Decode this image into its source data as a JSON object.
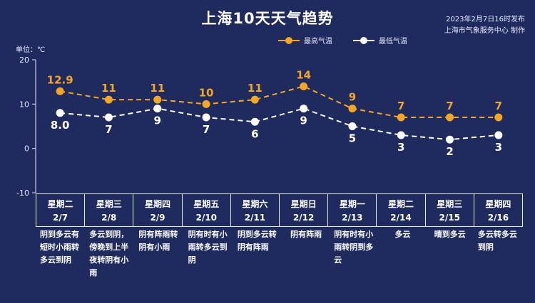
{
  "title": "上海10天天气趋势",
  "publish_time": "2023年2月7日16时发布",
  "publisher": "上海市气象服务中心 制作",
  "unit_label": "单位：℃",
  "colors": {
    "background": "#1f2a5e",
    "high": "#f5a623",
    "low": "#ffffff",
    "axis": "#e8ecff"
  },
  "chart_data": {
    "type": "line",
    "y_range": [
      -10,
      20
    ],
    "y_ticks": [
      "20",
      "10",
      "0",
      "-10"
    ],
    "legend_position": "top-center",
    "categories": [
      "2/7",
      "2/8",
      "2/9",
      "2/10",
      "2/11",
      "2/12",
      "2/13",
      "2/14",
      "2/15",
      "2/16"
    ],
    "series": [
      {
        "name": "最高气温",
        "values": [
          12.9,
          11,
          11,
          10,
          11,
          14,
          9,
          7,
          7,
          7
        ],
        "labels": [
          "12.9",
          "11",
          "11",
          "10",
          "11",
          "14",
          "9",
          "7",
          "7",
          "7"
        ]
      },
      {
        "name": "最低气温",
        "values": [
          8.0,
          7,
          9,
          7,
          6,
          9,
          5,
          3,
          2,
          3
        ],
        "labels": [
          "8.0",
          "7",
          "9",
          "7",
          "6",
          "9",
          "5",
          "3",
          "2",
          "3"
        ]
      }
    ]
  },
  "days": [
    {
      "weekday": "星期二",
      "date": "2/7",
      "weather": "阴到多云有短时小雨转多云到阴"
    },
    {
      "weekday": "星期三",
      "date": "2/8",
      "weather": "多云到阴，傍晚到上半夜转阴有小雨"
    },
    {
      "weekday": "星期四",
      "date": "2/9",
      "weather": "阴有阵雨转阴有小雨"
    },
    {
      "weekday": "星期五",
      "date": "2/10",
      "weather": "阴有时有小雨转多云到阴"
    },
    {
      "weekday": "星期六",
      "date": "2/11",
      "weather": "阴到多云转阴有阵雨"
    },
    {
      "weekday": "星期日",
      "date": "2/12",
      "weather": "阴有阵雨"
    },
    {
      "weekday": "星期一",
      "date": "2/13",
      "weather": "阴有时有小雨转阴到多云"
    },
    {
      "weekday": "星期二",
      "date": "2/14",
      "weather": "多云"
    },
    {
      "weekday": "星期三",
      "date": "2/15",
      "weather": "晴到多云"
    },
    {
      "weekday": "星期四",
      "date": "2/16",
      "weather": "多云转多云到阴"
    }
  ]
}
